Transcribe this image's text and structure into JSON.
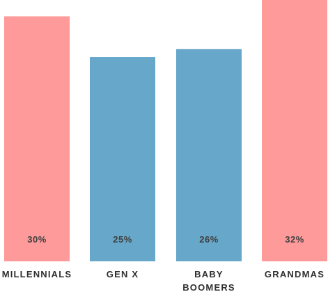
{
  "chart_data": {
    "type": "bar",
    "title": "",
    "xlabel": "",
    "ylabel": "",
    "categories": [
      [
        "MILLENNIALS"
      ],
      [
        "GEN X"
      ],
      [
        "BABY",
        "BOOMERS"
      ],
      [
        "GRANDMAS"
      ]
    ],
    "values": [
      30,
      25,
      26,
      32
    ],
    "value_labels": [
      "30%",
      "25%",
      "26%",
      "32%"
    ],
    "colors": [
      "#ff9a9a",
      "#67a7ca",
      "#67a7ca",
      "#ff9a9a"
    ],
    "grid": false,
    "legend": "none"
  }
}
